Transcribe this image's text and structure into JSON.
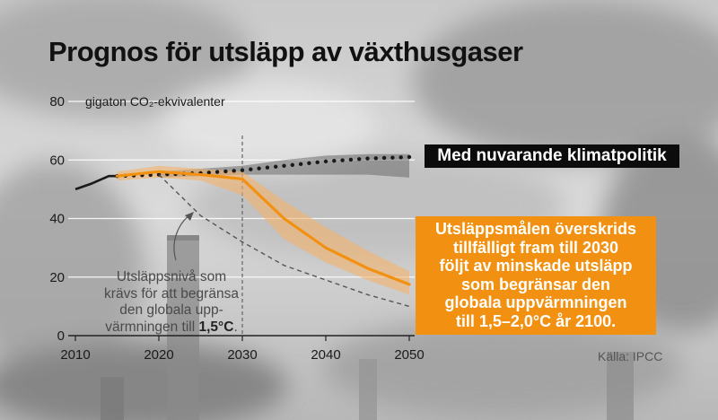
{
  "title": "Prognos för utsläpp av växthusgaser",
  "colors": {
    "current_policy": "#1a1a1a",
    "target_path": "#f29111",
    "target_band": "#f3b36a",
    "current_band": "#6b6b6b",
    "required_path": "#555555",
    "grid": "#ffffff"
  },
  "annotations": {
    "current_policy": "Med nuvarande klimatpolitik",
    "target_lines": [
      "Utsläppsmålen överskrids",
      "tillfälligt fram till 2030",
      "följt av minskade utsläpp",
      "som begränsar den",
      "globala uppvärmningen",
      "till 1,5–2,0°C år 2100."
    ],
    "required_lines": [
      "Utsläppsnivå som",
      "krävs för att begränsa",
      "den globala upp-"
    ],
    "required_last_prefix": "värmningen till ",
    "required_last_bold": "1,5°C",
    "required_last_suffix": ".",
    "source": "Källa: IPCC"
  },
  "chart_data": {
    "type": "line",
    "title": "Prognos för utsläpp av växthusgaser",
    "ylabel": "gigaton CO₂-ekvivalenter",
    "xlim": [
      2010,
      2050
    ],
    "ylim": [
      0,
      80
    ],
    "xticks": [
      2010,
      2020,
      2030,
      2040,
      2050
    ],
    "yticks": [
      0,
      20,
      40,
      60,
      80
    ],
    "grid": true,
    "reference_x": 2030,
    "series": [
      {
        "key": "historical",
        "style": "solid",
        "x": [
          2010,
          2012,
          2014,
          2015
        ],
        "y": [
          50,
          52,
          54.5,
          54.5
        ]
      },
      {
        "name": "Med nuvarande klimatpolitik",
        "key": "current",
        "style": "dotted",
        "x": [
          2015,
          2020,
          2025,
          2030,
          2035,
          2040,
          2045,
          2050
        ],
        "y": [
          54.5,
          55,
          55.5,
          56.5,
          58,
          59.5,
          60.5,
          61
        ]
      },
      {
        "key": "target",
        "style": "solid",
        "x": [
          2015,
          2020,
          2025,
          2030,
          2035,
          2040,
          2045,
          2050
        ],
        "y": [
          54.5,
          56,
          55,
          53.5,
          40,
          30,
          23,
          17.5
        ]
      },
      {
        "key": "required",
        "style": "dashed",
        "x": [
          2020,
          2025,
          2030,
          2035,
          2040,
          2045,
          2050
        ],
        "y": [
          55,
          41,
          32,
          24,
          19,
          14,
          10
        ]
      }
    ],
    "bands": [
      {
        "key": "current_band",
        "x": [
          2020,
          2025,
          2030,
          2035,
          2040,
          2045,
          2050
        ],
        "low": [
          54,
          54.5,
          55,
          55,
          55,
          55,
          54
        ],
        "high": [
          56,
          57,
          58,
          60,
          61.5,
          62,
          62
        ]
      },
      {
        "key": "target_band",
        "x": [
          2015,
          2020,
          2025,
          2030,
          2035,
          2040,
          2045,
          2050
        ],
        "low": [
          53,
          54,
          53,
          48,
          33,
          25,
          19,
          14
        ],
        "high": [
          56,
          58,
          57,
          56,
          46,
          37,
          29,
          22
        ]
      }
    ]
  }
}
